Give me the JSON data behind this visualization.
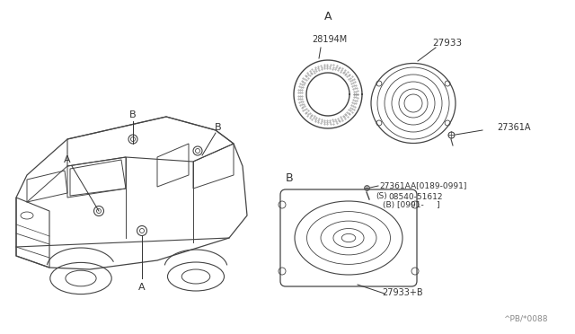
{
  "bg_color": "#ffffff",
  "line_color": "#444444",
  "text_color": "#333333",
  "part_28194M": "28194M",
  "part_27933": "27933",
  "part_27361A": "27361A",
  "part_27361AA": "27361AA[0189-0991]",
  "part_08540": "08540-51612",
  "part_S": "(S)",
  "part_B_note": "(B) [0991-     ]",
  "part_27933B": "27933+B",
  "footer": "^PB/*0088",
  "label_A": "A",
  "label_B": "B"
}
